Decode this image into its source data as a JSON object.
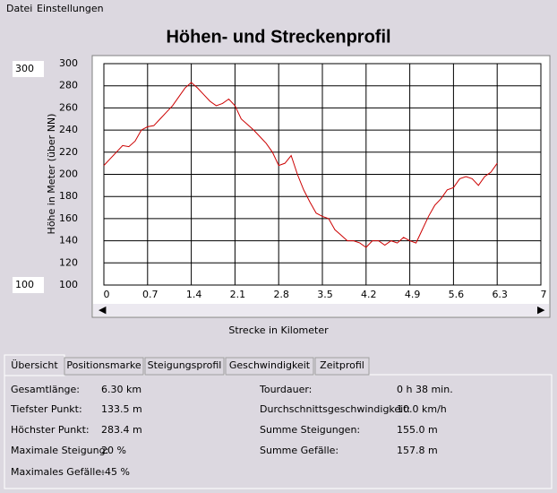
{
  "menu": [
    "Datei",
    "Einstellungen"
  ],
  "controls": {
    "y_max_input": "300",
    "y_min_input": "100"
  },
  "chart_data": {
    "type": "line",
    "title": "Höhen- und Streckenprofil",
    "x_label": "Strecke in Kilometer",
    "y_label": "Höhe in Meter (über NN)",
    "x": [
      0,
      0.1,
      0.2,
      0.3,
      0.4,
      0.5,
      0.6,
      0.7,
      0.8,
      0.9,
      1.0,
      1.1,
      1.2,
      1.3,
      1.4,
      1.5,
      1.6,
      1.7,
      1.8,
      1.9,
      2.0,
      2.1,
      2.2,
      2.3,
      2.4,
      2.5,
      2.6,
      2.7,
      2.8,
      2.9,
      3.0,
      3.1,
      3.2,
      3.3,
      3.4,
      3.5,
      3.6,
      3.7,
      3.8,
      3.9,
      4.0,
      4.1,
      4.2,
      4.3,
      4.4,
      4.5,
      4.6,
      4.7,
      4.8,
      4.9,
      5.0,
      5.1,
      5.2,
      5.3,
      5.4,
      5.5,
      5.6,
      5.7,
      5.8,
      5.9,
      6.0,
      6.1,
      6.2,
      6.3
    ],
    "series": [
      {
        "name": "Höhe",
        "color": "#cc0000",
        "values": [
          208,
          214,
          220,
          226,
          225,
          230,
          240,
          243,
          244,
          250,
          256,
          262,
          270,
          278,
          283,
          278,
          272,
          266,
          262,
          264,
          268,
          262,
          250,
          245,
          240,
          234,
          228,
          220,
          208,
          210,
          217,
          200,
          186,
          175,
          165,
          162,
          160,
          150,
          145,
          140,
          140,
          138,
          134,
          140,
          140,
          136,
          140,
          138,
          143,
          140,
          138,
          150,
          162,
          172,
          178,
          186,
          188,
          196,
          198,
          196,
          190,
          198,
          202,
          210
        ]
      }
    ],
    "xlim": [
      0,
      7
    ],
    "xticks": [
      0,
      0.7,
      1.4,
      2.1,
      2.8,
      3.5,
      4.2,
      4.9,
      5.6,
      6.3,
      7
    ],
    "ylim": [
      100,
      300
    ],
    "yticks": [
      100,
      120,
      140,
      160,
      180,
      200,
      220,
      240,
      260,
      280,
      300
    ],
    "grid": true
  },
  "tabs": [
    "Übersicht",
    "Positionsmarke",
    "Steigungsprofil",
    "Geschwindigkeit",
    "Zeitprofil"
  ],
  "summary": {
    "left": [
      [
        "Gesamtlänge:",
        "6.30 km"
      ],
      [
        "Tiefster Punkt:",
        "133.5 m"
      ],
      [
        "Höchster Punkt:",
        "283.4 m"
      ],
      [
        "Maximale Steigung:",
        "20 %"
      ],
      [
        "Maximales Gefälle:",
        "-45 %"
      ]
    ],
    "right": [
      [
        "Tourdauer:",
        "0 h 38 min."
      ],
      [
        "Durchschnittsgeschwindigkeit:",
        "10.0 km/h"
      ],
      [
        "Summe Steigungen:",
        "155.0 m"
      ],
      [
        "Summe Gefälle:",
        "157.8 m"
      ]
    ]
  }
}
